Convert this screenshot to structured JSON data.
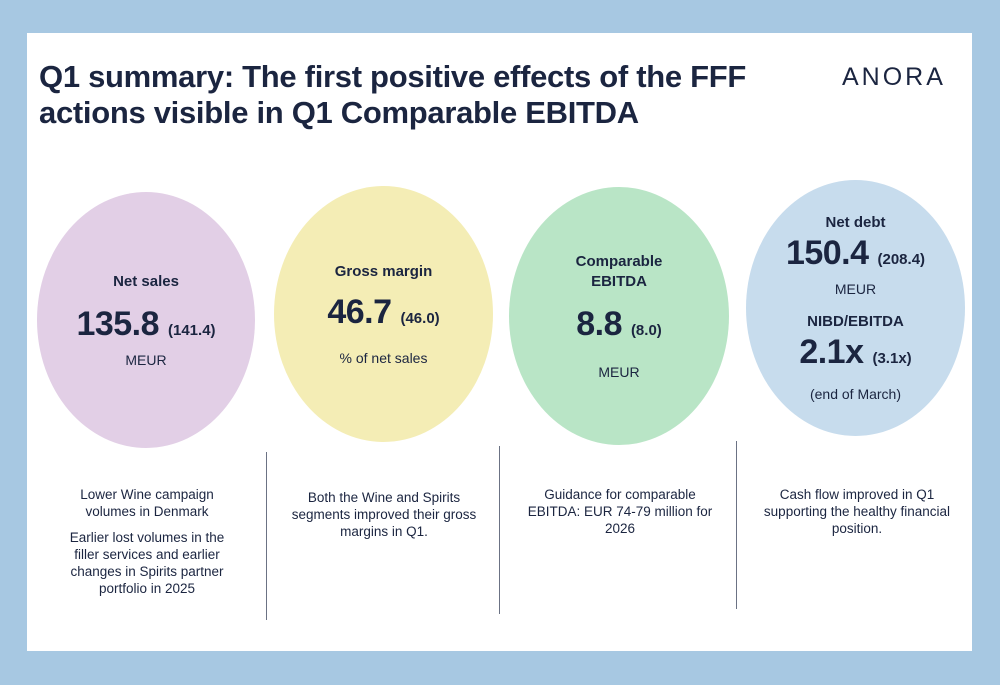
{
  "title": "Q1 summary: The first positive effects of the FFF actions visible in Q1 Comparable EBITDA",
  "logo": "ANORA",
  "kpis": [
    {
      "label": "Net sales",
      "value": "135.8",
      "previous": "(141.4)",
      "unit": "MEUR",
      "notes": [
        "Lower Wine campaign volumes in Denmark",
        "Earlier lost volumes in the filler services and earlier changes in Spirits partner portfolio in 2025"
      ],
      "color": "#e2cfe6"
    },
    {
      "label": "Gross margin",
      "value": "46.7",
      "previous": "(46.0)",
      "unit": "% of net sales",
      "notes": [
        "Both the Wine and Spirits segments improved their gross margins in Q1."
      ],
      "color": "#f4edb5"
    },
    {
      "label_line1": "Comparable",
      "label_line2": "EBITDA",
      "value": "8.8",
      "previous": "(8.0)",
      "unit": "MEUR",
      "notes": [
        "Guidance for comparable EBITDA: EUR 74-79 million for 2026"
      ],
      "color": "#b9e5c6"
    },
    {
      "label": "Net debt",
      "value": "150.4",
      "previous": "(208.4)",
      "unit": "MEUR",
      "label2": "NIBD/EBITDA",
      "value2": "2.1x",
      "previous2": "(3.1x)",
      "unit2": "(end of March)",
      "notes": [
        "Cash flow improved in Q1 supporting the healthy financial position."
      ],
      "color": "#c7dced"
    }
  ]
}
